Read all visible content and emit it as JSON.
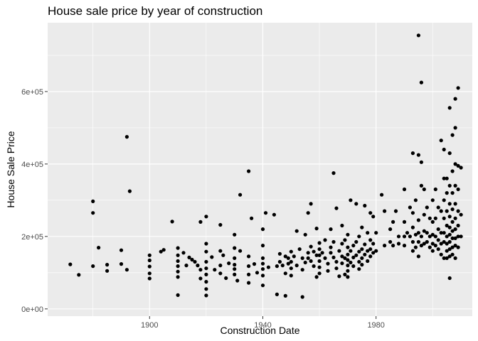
{
  "chart_data": {
    "type": "scatter",
    "title": "House sale price by year of construction",
    "xlabel": "Construction Date",
    "ylabel": "House Sale Price",
    "xlim": [
      1864,
      2014
    ],
    "ylim": [
      -20000,
      790000
    ],
    "x_ticks": [
      1900,
      1940,
      1980
    ],
    "x_tick_labels": [
      "1900",
      "1940",
      "1980"
    ],
    "y_ticks": [
      0,
      200000,
      400000,
      600000
    ],
    "y_tick_labels": [
      "0e+00",
      "2e+05",
      "4e+05",
      "6e+05"
    ],
    "grid": true,
    "legend": "none",
    "colors": {
      "panel": "#ebebeb",
      "grid": "#ffffff",
      "point": "#000000",
      "tick_text": "#4d4d4d"
    },
    "points": [
      [
        1872,
        123000
      ],
      [
        1875,
        94000
      ],
      [
        1880,
        297000
      ],
      [
        1880,
        265000
      ],
      [
        1880,
        118000
      ],
      [
        1882,
        169000
      ],
      [
        1885,
        122000
      ],
      [
        1885,
        105000
      ],
      [
        1890,
        162000
      ],
      [
        1890,
        124000
      ],
      [
        1892,
        475000
      ],
      [
        1892,
        108000
      ],
      [
        1893,
        325000
      ],
      [
        1900,
        148000
      ],
      [
        1900,
        134000
      ],
      [
        1900,
        117000
      ],
      [
        1900,
        98000
      ],
      [
        1900,
        84000
      ],
      [
        1904,
        158000
      ],
      [
        1905,
        163000
      ],
      [
        1908,
        241000
      ],
      [
        1910,
        168000
      ],
      [
        1910,
        148000
      ],
      [
        1910,
        132000
      ],
      [
        1910,
        118000
      ],
      [
        1910,
        103000
      ],
      [
        1910,
        88000
      ],
      [
        1910,
        38000
      ],
      [
        1912,
        155000
      ],
      [
        1913,
        120000
      ],
      [
        1914,
        142000
      ],
      [
        1915,
        136000
      ],
      [
        1916,
        130000
      ],
      [
        1917,
        120000
      ],
      [
        1918,
        240000
      ],
      [
        1918,
        108000
      ],
      [
        1918,
        84000
      ],
      [
        1920,
        255000
      ],
      [
        1920,
        180000
      ],
      [
        1920,
        158000
      ],
      [
        1920,
        130000
      ],
      [
        1920,
        112000
      ],
      [
        1920,
        95000
      ],
      [
        1920,
        75000
      ],
      [
        1920,
        55000
      ],
      [
        1920,
        37000
      ],
      [
        1922,
        143000
      ],
      [
        1923,
        108000
      ],
      [
        1925,
        232000
      ],
      [
        1925,
        160000
      ],
      [
        1925,
        120000
      ],
      [
        1925,
        98000
      ],
      [
        1926,
        148000
      ],
      [
        1927,
        85000
      ],
      [
        1928,
        126000
      ],
      [
        1930,
        205000
      ],
      [
        1930,
        168000
      ],
      [
        1930,
        140000
      ],
      [
        1930,
        122000
      ],
      [
        1930,
        110000
      ],
      [
        1930,
        95000
      ],
      [
        1931,
        78000
      ],
      [
        1932,
        315000
      ],
      [
        1932,
        160000
      ],
      [
        1935,
        380000
      ],
      [
        1935,
        145000
      ],
      [
        1935,
        118000
      ],
      [
        1935,
        95000
      ],
      [
        1935,
        72000
      ],
      [
        1936,
        250000
      ],
      [
        1937,
        124000
      ],
      [
        1938,
        100000
      ],
      [
        1940,
        220000
      ],
      [
        1940,
        175000
      ],
      [
        1940,
        140000
      ],
      [
        1940,
        125000
      ],
      [
        1940,
        110000
      ],
      [
        1940,
        92000
      ],
      [
        1940,
        65000
      ],
      [
        1941,
        265000
      ],
      [
        1942,
        115000
      ],
      [
        1944,
        260000
      ],
      [
        1945,
        118000
      ],
      [
        1945,
        40000
      ],
      [
        1946,
        152000
      ],
      [
        1946,
        130000
      ],
      [
        1947,
        120000
      ],
      [
        1948,
        145000
      ],
      [
        1948,
        98000
      ],
      [
        1948,
        36000
      ],
      [
        1949,
        140000
      ],
      [
        1949,
        125000
      ],
      [
        1950,
        158000
      ],
      [
        1950,
        130000
      ],
      [
        1950,
        112000
      ],
      [
        1950,
        92000
      ],
      [
        1951,
        145000
      ],
      [
        1952,
        215000
      ],
      [
        1952,
        120000
      ],
      [
        1953,
        165000
      ],
      [
        1954,
        140000
      ],
      [
        1954,
        108000
      ],
      [
        1954,
        33000
      ],
      [
        1955,
        205000
      ],
      [
        1955,
        128000
      ],
      [
        1956,
        265000
      ],
      [
        1956,
        155000
      ],
      [
        1956,
        140000
      ],
      [
        1957,
        290000
      ],
      [
        1957,
        172000
      ],
      [
        1957,
        132000
      ],
      [
        1958,
        158000
      ],
      [
        1958,
        118000
      ],
      [
        1959,
        222000
      ],
      [
        1959,
        148000
      ],
      [
        1959,
        88000
      ],
      [
        1960,
        182000
      ],
      [
        1960,
        165000
      ],
      [
        1960,
        148000
      ],
      [
        1960,
        132000
      ],
      [
        1960,
        115000
      ],
      [
        1960,
        98000
      ],
      [
        1961,
        155000
      ],
      [
        1962,
        190000
      ],
      [
        1962,
        140000
      ],
      [
        1963,
        125000
      ],
      [
        1963,
        105000
      ],
      [
        1964,
        220000
      ],
      [
        1964,
        170000
      ],
      [
        1964,
        155000
      ],
      [
        1965,
        375000
      ],
      [
        1965,
        185000
      ],
      [
        1965,
        142000
      ],
      [
        1966,
        278000
      ],
      [
        1966,
        130000
      ],
      [
        1966,
        112000
      ],
      [
        1967,
        160000
      ],
      [
        1967,
        90000
      ],
      [
        1968,
        230000
      ],
      [
        1968,
        180000
      ],
      [
        1968,
        145000
      ],
      [
        1968,
        126000
      ],
      [
        1969,
        190000
      ],
      [
        1969,
        140000
      ],
      [
        1969,
        95000
      ],
      [
        1970,
        205000
      ],
      [
        1970,
        170000
      ],
      [
        1970,
        150000
      ],
      [
        1970,
        135000
      ],
      [
        1970,
        120000
      ],
      [
        1970,
        105000
      ],
      [
        1970,
        88000
      ],
      [
        1971,
        300000
      ],
      [
        1971,
        160000
      ],
      [
        1971,
        128000
      ],
      [
        1972,
        175000
      ],
      [
        1972,
        142000
      ],
      [
        1972,
        118000
      ],
      [
        1973,
        290000
      ],
      [
        1973,
        185000
      ],
      [
        1973,
        148000
      ],
      [
        1974,
        200000
      ],
      [
        1974,
        158000
      ],
      [
        1974,
        130000
      ],
      [
        1974,
        110000
      ],
      [
        1975,
        225000
      ],
      [
        1975,
        165000
      ],
      [
        1975,
        140000
      ],
      [
        1975,
        122000
      ],
      [
        1976,
        285000
      ],
      [
        1976,
        178000
      ],
      [
        1976,
        150000
      ],
      [
        1977,
        210000
      ],
      [
        1977,
        160000
      ],
      [
        1977,
        132000
      ],
      [
        1978,
        265000
      ],
      [
        1978,
        190000
      ],
      [
        1978,
        165000
      ],
      [
        1978,
        145000
      ],
      [
        1979,
        255000
      ],
      [
        1979,
        180000
      ],
      [
        1979,
        155000
      ],
      [
        1980,
        210000
      ],
      [
        1980,
        160000
      ],
      [
        1982,
        315000
      ],
      [
        1983,
        175000
      ],
      [
        1983,
        270000
      ],
      [
        1985,
        185000
      ],
      [
        1985,
        220000
      ],
      [
        1986,
        240000
      ],
      [
        1986,
        175000
      ],
      [
        1987,
        270000
      ],
      [
        1988,
        200000
      ],
      [
        1988,
        180000
      ],
      [
        1990,
        330000
      ],
      [
        1990,
        240000
      ],
      [
        1990,
        200000
      ],
      [
        1990,
        175000
      ],
      [
        1991,
        210000
      ],
      [
        1992,
        280000
      ],
      [
        1992,
        200000
      ],
      [
        1993,
        430000
      ],
      [
        1993,
        265000
      ],
      [
        1993,
        225000
      ],
      [
        1993,
        185000
      ],
      [
        1993,
        160000
      ],
      [
        1994,
        300000
      ],
      [
        1994,
        205000
      ],
      [
        1994,
        170000
      ],
      [
        1995,
        755000
      ],
      [
        1995,
        425000
      ],
      [
        1995,
        245000
      ],
      [
        1995,
        210000
      ],
      [
        1995,
        185000
      ],
      [
        1995,
        145000
      ],
      [
        1996,
        625000
      ],
      [
        1996,
        405000
      ],
      [
        1996,
        340000
      ],
      [
        1996,
        200000
      ],
      [
        1996,
        175000
      ],
      [
        1997,
        330000
      ],
      [
        1997,
        260000
      ],
      [
        1997,
        215000
      ],
      [
        1997,
        180000
      ],
      [
        1998,
        280000
      ],
      [
        1998,
        210000
      ],
      [
        1998,
        185000
      ],
      [
        1999,
        250000
      ],
      [
        1999,
        200000
      ],
      [
        1999,
        170000
      ],
      [
        2000,
        300000
      ],
      [
        2000,
        240000
      ],
      [
        2000,
        205000
      ],
      [
        2000,
        180000
      ],
      [
        2000,
        160000
      ],
      [
        2001,
        330000
      ],
      [
        2001,
        250000
      ],
      [
        2001,
        200000
      ],
      [
        2001,
        175000
      ],
      [
        2002,
        280000
      ],
      [
        2002,
        220000
      ],
      [
        2002,
        190000
      ],
      [
        2002,
        165000
      ],
      [
        2003,
        465000
      ],
      [
        2003,
        270000
      ],
      [
        2003,
        210000
      ],
      [
        2003,
        180000
      ],
      [
        2003,
        150000
      ],
      [
        2004,
        440000
      ],
      [
        2004,
        360000
      ],
      [
        2004,
        300000
      ],
      [
        2004,
        250000
      ],
      [
        2004,
        210000
      ],
      [
        2004,
        185000
      ],
      [
        2004,
        140000
      ],
      [
        2005,
        360000
      ],
      [
        2005,
        320000
      ],
      [
        2005,
        270000
      ],
      [
        2005,
        230000
      ],
      [
        2005,
        200000
      ],
      [
        2005,
        180000
      ],
      [
        2005,
        160000
      ],
      [
        2005,
        140000
      ],
      [
        2006,
        555000
      ],
      [
        2006,
        430000
      ],
      [
        2006,
        340000
      ],
      [
        2006,
        290000
      ],
      [
        2006,
        255000
      ],
      [
        2006,
        225000
      ],
      [
        2006,
        205000
      ],
      [
        2006,
        185000
      ],
      [
        2006,
        165000
      ],
      [
        2006,
        145000
      ],
      [
        2006,
        85000
      ],
      [
        2007,
        480000
      ],
      [
        2007,
        380000
      ],
      [
        2007,
        320000
      ],
      [
        2007,
        275000
      ],
      [
        2007,
        240000
      ],
      [
        2007,
        215000
      ],
      [
        2007,
        195000
      ],
      [
        2007,
        170000
      ],
      [
        2007,
        150000
      ],
      [
        2008,
        580000
      ],
      [
        2008,
        500000
      ],
      [
        2008,
        400000
      ],
      [
        2008,
        340000
      ],
      [
        2008,
        290000
      ],
      [
        2008,
        250000
      ],
      [
        2008,
        220000
      ],
      [
        2008,
        195000
      ],
      [
        2008,
        175000
      ],
      [
        2008,
        140000
      ],
      [
        2009,
        610000
      ],
      [
        2009,
        395000
      ],
      [
        2009,
        330000
      ],
      [
        2009,
        270000
      ],
      [
        2009,
        230000
      ],
      [
        2009,
        200000
      ],
      [
        2009,
        170000
      ],
      [
        2010,
        390000
      ],
      [
        2010,
        260000
      ],
      [
        2010,
        200000
      ]
    ]
  }
}
